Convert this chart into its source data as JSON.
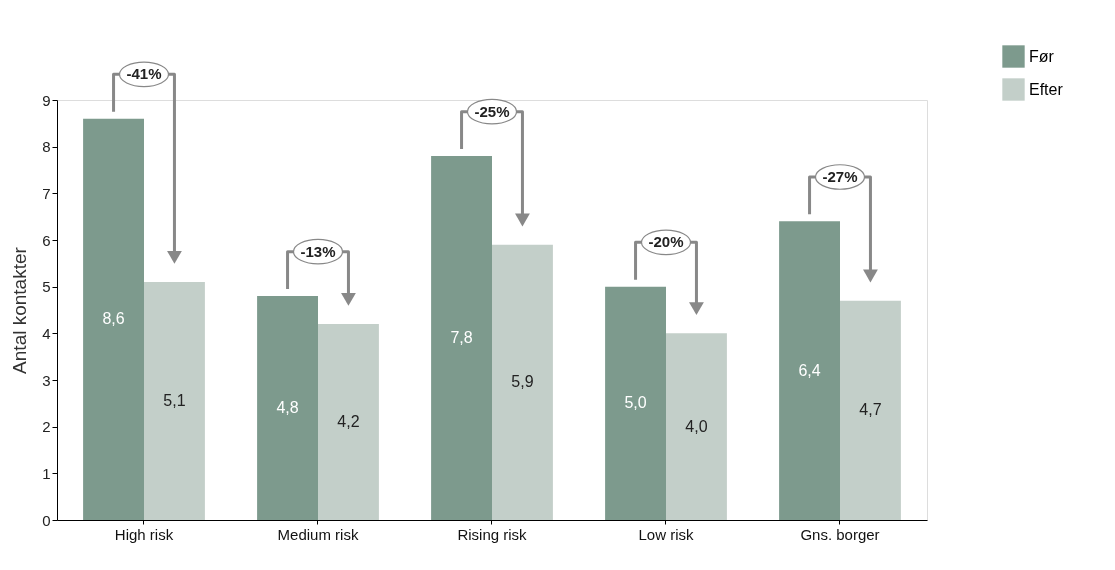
{
  "chart_data": {
    "type": "bar",
    "ylabel": "Antal kontakter",
    "categories": [
      "High risk",
      "Medium risk",
      "Rising risk",
      "Low risk",
      "Gns. borger"
    ],
    "series": [
      {
        "name": "Før",
        "color": "#7d9a8d",
        "values": [
          8.6,
          4.8,
          7.8,
          5.0,
          6.4
        ],
        "value_labels": [
          "8,6",
          "4,8",
          "7,8",
          "5,0",
          "6,4"
        ]
      },
      {
        "name": "Efter",
        "color": "#c3cfc9",
        "values": [
          5.1,
          4.2,
          5.9,
          4.0,
          4.7
        ],
        "value_labels": [
          "5,1",
          "4,2",
          "5,9",
          "4,0",
          "4,7"
        ]
      }
    ],
    "ylim": [
      0,
      9
    ],
    "yticks": [
      0,
      1,
      2,
      3,
      4,
      5,
      6,
      7,
      8,
      9
    ],
    "grid": false,
    "legend": "top right",
    "annotations": [
      {
        "text": "-41%",
        "x": "High risk",
        "y": 8.6
      },
      {
        "text": "-13%",
        "x": "Medium risk",
        "y": 4.8
      },
      {
        "text": "-25%",
        "x": "Rising risk",
        "y": 7.8
      },
      {
        "text": "-20%",
        "x": "Low risk",
        "y": 5.0
      },
      {
        "text": "-27%",
        "x": "Gns. borger",
        "y": 6.4
      }
    ]
  }
}
